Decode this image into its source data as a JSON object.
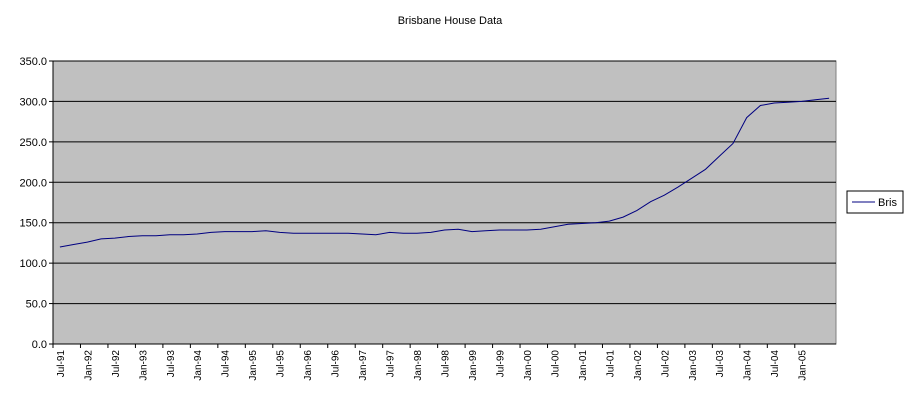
{
  "chart_data": {
    "type": "line",
    "title": "Brisbane House Data",
    "categories": [
      "Jul-91",
      null,
      "Jan-92",
      null,
      "Jul-92",
      null,
      "Jan-93",
      null,
      "Jul-93",
      null,
      "Jan-94",
      null,
      "Jul-94",
      null,
      "Jan-95",
      null,
      "Jul-95",
      null,
      "Jan-96",
      null,
      "Jul-96",
      null,
      "Jan-97",
      null,
      "Jul-97",
      null,
      "Jan-98",
      null,
      "Jul-98",
      null,
      "Jan-99",
      null,
      "Jul-99",
      null,
      "Jan-00",
      null,
      "Jul-00",
      null,
      "Jan-01",
      null,
      "Jul-01",
      null,
      "Jan-02",
      null,
      "Jul-02",
      null,
      "Jan-03",
      null,
      "Jul-03",
      null,
      "Jan-04",
      null,
      "Jul-04",
      null,
      "Jan-05",
      null,
      null
    ],
    "series": [
      {
        "name": "Bris",
        "color": "#000080",
        "values": [
          120,
          123,
          126,
          130,
          131,
          133,
          134,
          134,
          135,
          135,
          136,
          138,
          139,
          139,
          139,
          140,
          138,
          137,
          137,
          137,
          137,
          137,
          136,
          135,
          138,
          137,
          137,
          138,
          141,
          142,
          139,
          140,
          141,
          141,
          141,
          142,
          145,
          148,
          149,
          150,
          152,
          157,
          165,
          176,
          184,
          194,
          205,
          216,
          232,
          248,
          280,
          295,
          298,
          299,
          300,
          302,
          304
        ]
      }
    ],
    "ylim": [
      0,
      350
    ],
    "yticks": [
      {
        "value": 0,
        "label": "0.0"
      },
      {
        "value": 50,
        "label": "50.0"
      },
      {
        "value": 100,
        "label": "100.0"
      },
      {
        "value": 150,
        "label": "150.0"
      },
      {
        "value": 200,
        "label": "200.0"
      },
      {
        "value": 250,
        "label": "250.0"
      },
      {
        "value": 300,
        "label": "300.0"
      },
      {
        "value": 350,
        "label": "350.0"
      }
    ],
    "grid": true,
    "legend": "right"
  }
}
